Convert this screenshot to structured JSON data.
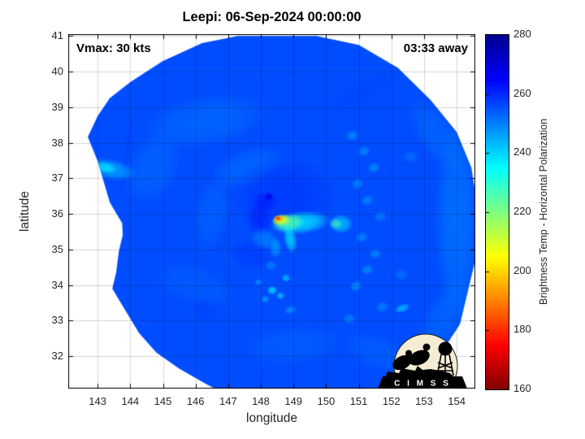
{
  "title": "Leepi: 06-Sep-2024 00:00:00",
  "annotations": {
    "vmax": "Vmax: 30 kts",
    "time_to_obs": "03:33 away"
  },
  "logo": {
    "name": "CIMSS",
    "banner_text": "C I M S S"
  },
  "chart_data": {
    "type": "heatmap",
    "title": "Leepi: 06-Sep-2024 00:00:00",
    "xlabel": "longitude",
    "ylabel": "latitude",
    "xlim": [
      142.1,
      154.57
    ],
    "ylim": [
      31.09,
      41.05
    ],
    "xticks": [
      143,
      144,
      145,
      146,
      147,
      148,
      149,
      150,
      151,
      152,
      153,
      154
    ],
    "yticks": [
      32,
      33,
      34,
      35,
      36,
      37,
      38,
      39,
      40,
      41
    ],
    "grid": true,
    "storm": {
      "name": "Leepi",
      "datetime": "06-Sep-2024 00:00:00",
      "vmax_kts": 30,
      "time_offset": "03:33 away",
      "center_lon": 148.5,
      "center_lat": 35.85,
      "min_core_brightness_temp_K": 181
    },
    "colorbar": {
      "label": "Brightness Temp - Horizontal Polarization",
      "min": 160,
      "max": 280,
      "ticks": [
        160,
        180,
        200,
        220,
        240,
        260,
        280
      ],
      "colormap": [
        [
          160,
          "#7f0000"
        ],
        [
          175,
          "#ff0000"
        ],
        [
          190,
          "#ff8000"
        ],
        [
          205,
          "#ffff00"
        ],
        [
          220,
          "#80ff80"
        ],
        [
          235,
          "#00ffff"
        ],
        [
          250,
          "#0080ff"
        ],
        [
          265,
          "#0000ff"
        ],
        [
          280,
          "#00008f"
        ]
      ]
    },
    "base_value": 256,
    "swath_polygon": [
      [
        146.2,
        40.8
      ],
      [
        147.3,
        41.0
      ],
      [
        149.7,
        41.0
      ],
      [
        151.0,
        40.75
      ],
      [
        152.2,
        40.1
      ],
      [
        153.2,
        39.2
      ],
      [
        154.0,
        38.3
      ],
      [
        154.45,
        37.3
      ],
      [
        154.62,
        36.3
      ],
      [
        154.62,
        34.9
      ],
      [
        154.1,
        32.9
      ],
      [
        153.6,
        32.2
      ],
      [
        152.98,
        31.67
      ],
      [
        152.2,
        31.25
      ],
      [
        151.5,
        30.95
      ],
      [
        147.0,
        30.9
      ],
      [
        146.36,
        31.2
      ],
      [
        145.5,
        31.65
      ],
      [
        144.8,
        32.1
      ],
      [
        144.27,
        32.65
      ],
      [
        143.75,
        33.44
      ],
      [
        143.45,
        33.9
      ],
      [
        143.57,
        34.36
      ],
      [
        143.65,
        34.95
      ],
      [
        143.77,
        35.41
      ],
      [
        143.75,
        35.74
      ],
      [
        143.45,
        36.2
      ],
      [
        143.37,
        36.33
      ],
      [
        143.12,
        37.11
      ],
      [
        143.0,
        37.48
      ],
      [
        142.83,
        37.87
      ],
      [
        142.7,
        38.16
      ],
      [
        143.0,
        38.75
      ],
      [
        143.37,
        39.25
      ],
      [
        144.0,
        39.7
      ],
      [
        144.99,
        40.29
      ]
    ],
    "features_format": "[lon, lat, rx_deg, ry_deg, rot_deg, brightness_temp_K, alpha]",
    "features": [
      [
        146.3,
        38.6,
        2.0,
        0.75,
        -10,
        250,
        0.45
      ],
      [
        144.7,
        37.3,
        0.8,
        1.1,
        25,
        250,
        0.4
      ],
      [
        147.6,
        37.3,
        1.2,
        0.55,
        -20,
        250,
        0.45
      ],
      [
        146.5,
        36.0,
        0.55,
        1.1,
        10,
        251,
        0.4
      ],
      [
        146.0,
        34.0,
        1.4,
        0.6,
        20,
        252,
        0.35
      ],
      [
        149.0,
        32.3,
        1.6,
        0.55,
        -5,
        251,
        0.35
      ],
      [
        154.0,
        35.8,
        0.7,
        2.8,
        0,
        249,
        0.55
      ],
      [
        153.4,
        38.2,
        0.6,
        1.3,
        -35,
        250,
        0.4
      ],
      [
        153.7,
        33.2,
        0.6,
        1.3,
        32,
        250,
        0.4
      ],
      [
        151.6,
        32.1,
        1.2,
        0.5,
        22,
        251,
        0.35
      ],
      [
        148.7,
        36.5,
        1.7,
        1.15,
        0,
        260,
        0.5
      ],
      [
        150.9,
        39.3,
        1.4,
        0.4,
        -28,
        258,
        0.3
      ],
      [
        147.95,
        35.85,
        0.4,
        0.55,
        0,
        263,
        0.5
      ],
      [
        147.7,
        34.85,
        0.7,
        0.45,
        15,
        260,
        0.4
      ],
      [
        148.15,
        36.35,
        0.4,
        0.3,
        0,
        263,
        0.55
      ],
      [
        148.25,
        36.48,
        0.14,
        0.12,
        0,
        268,
        0.85
      ],
      [
        143.85,
        37.5,
        0.06,
        1.35,
        8,
        260,
        0.35
      ],
      [
        146.3,
        33.3,
        0.5,
        0.35,
        0,
        259,
        0.3
      ],
      [
        143.4,
        37.25,
        0.8,
        0.3,
        12,
        243,
        0.7
      ],
      [
        143.25,
        37.3,
        0.35,
        0.16,
        12,
        238,
        0.8
      ],
      [
        143.3,
        35.05,
        0.35,
        0.3,
        0,
        249,
        0.5
      ],
      [
        150.8,
        38.2,
        0.2,
        0.15,
        -20,
        244,
        0.5
      ],
      [
        151.16,
        37.76,
        0.2,
        0.15,
        -20,
        244,
        0.5
      ],
      [
        151.46,
        37.3,
        0.2,
        0.15,
        -20,
        244,
        0.5
      ],
      [
        150.96,
        36.84,
        0.2,
        0.15,
        -20,
        245,
        0.5
      ],
      [
        151.26,
        36.38,
        0.2,
        0.15,
        -20,
        244,
        0.5
      ],
      [
        151.66,
        35.92,
        0.2,
        0.15,
        -20,
        245,
        0.45
      ],
      [
        151.09,
        35.34,
        0.2,
        0.15,
        -20,
        244,
        0.5
      ],
      [
        151.51,
        34.88,
        0.2,
        0.15,
        -20,
        244,
        0.45
      ],
      [
        151.26,
        34.43,
        0.2,
        0.15,
        -20,
        244,
        0.5
      ],
      [
        150.91,
        33.97,
        0.2,
        0.15,
        -20,
        243,
        0.5
      ],
      [
        151.71,
        33.39,
        0.2,
        0.15,
        -20,
        244,
        0.45
      ],
      [
        150.71,
        33.05,
        0.2,
        0.15,
        -20,
        244,
        0.45
      ],
      [
        152.33,
        33.35,
        0.25,
        0.12,
        -20,
        238,
        0.6
      ],
      [
        152.58,
        37.6,
        0.25,
        0.18,
        0,
        248,
        0.4
      ],
      [
        152.3,
        34.3,
        0.22,
        0.16,
        0,
        247,
        0.4
      ],
      [
        148.35,
        33.85,
        0.16,
        0.13,
        0,
        237,
        0.75
      ],
      [
        148.6,
        33.7,
        0.13,
        0.11,
        0,
        239,
        0.7
      ],
      [
        148.13,
        33.6,
        0.12,
        0.1,
        0,
        241,
        0.6
      ],
      [
        148.77,
        34.2,
        0.14,
        0.12,
        0,
        239,
        0.65
      ],
      [
        147.93,
        34.08,
        0.12,
        0.1,
        0,
        243,
        0.55
      ],
      [
        148.3,
        34.55,
        0.18,
        0.14,
        0,
        245,
        0.5
      ],
      [
        148.9,
        33.3,
        0.2,
        0.12,
        -15,
        243,
        0.5
      ],
      [
        148.1,
        35.3,
        0.45,
        0.3,
        20,
        246,
        0.5
      ],
      [
        149.2,
        35.75,
        0.95,
        0.33,
        -6,
        236,
        0.8
      ],
      [
        148.85,
        35.75,
        0.5,
        0.26,
        -8,
        224,
        0.8
      ],
      [
        148.9,
        35.3,
        0.2,
        0.42,
        -10,
        237,
        0.75
      ],
      [
        150.45,
        35.72,
        0.38,
        0.28,
        0,
        239,
        0.7
      ],
      [
        150.3,
        35.72,
        0.2,
        0.15,
        0,
        224,
        0.55
      ],
      [
        148.45,
        35.05,
        0.2,
        0.3,
        0,
        242,
        0.5
      ],
      [
        148.62,
        35.83,
        0.3,
        0.17,
        -8,
        207,
        0.9
      ],
      [
        148.55,
        35.86,
        0.16,
        0.1,
        -8,
        194,
        0.95
      ],
      [
        148.53,
        35.87,
        0.08,
        0.055,
        -8,
        181,
        0.95
      ]
    ]
  }
}
